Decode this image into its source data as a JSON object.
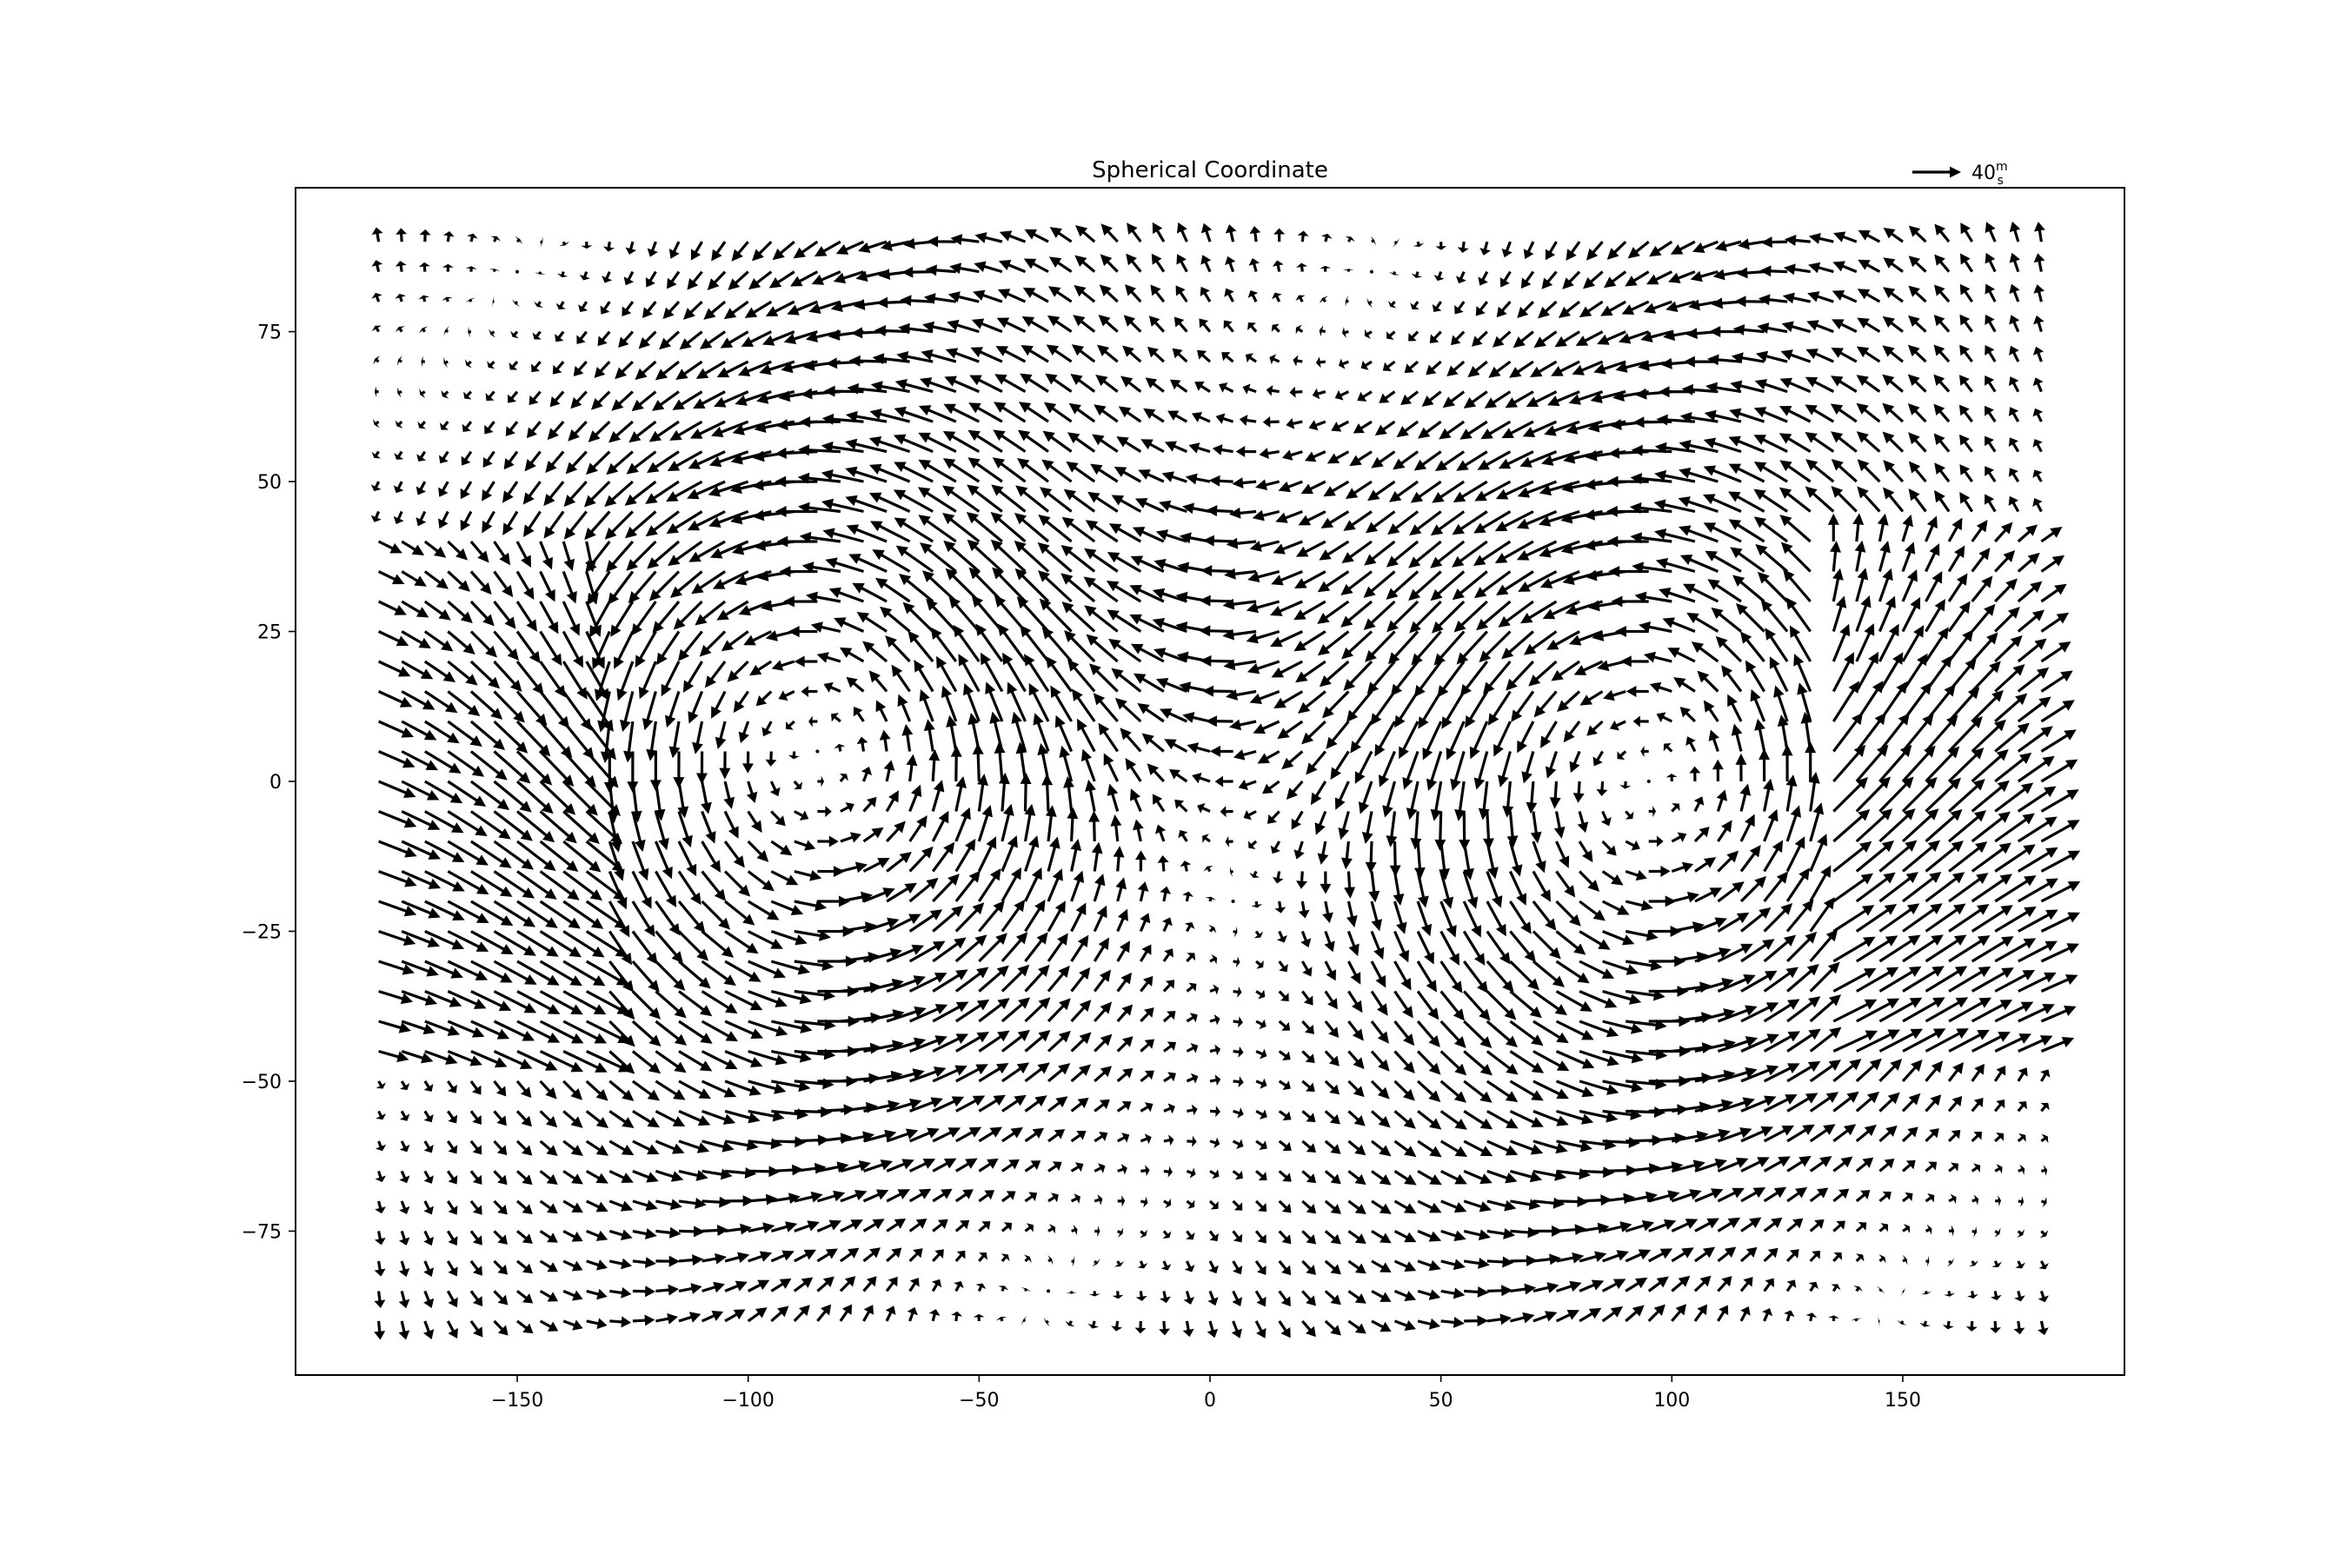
{
  "chart_data": {
    "type": "quiver",
    "title": "Spherical Coordinate",
    "xlabel": "",
    "ylabel": "",
    "xlim": [
      -198,
      198
    ],
    "ylim": [
      -99,
      99
    ],
    "x_ticks": [
      -150,
      -100,
      -50,
      0,
      50,
      100,
      150
    ],
    "x_tick_labels": [
      "−150",
      "−100",
      "−50",
      "0",
      "50",
      "100",
      "150"
    ],
    "y_ticks": [
      -75,
      -50,
      -25,
      0,
      25,
      50,
      75
    ],
    "y_tick_labels": [
      "−75",
      "−50",
      "−25",
      "0",
      "25",
      "50",
      "75"
    ],
    "grid": false,
    "color": "#000000",
    "quiverkey": {
      "value": 40,
      "label": "40",
      "unit_num": "m",
      "unit_den": "s",
      "position": "top-right"
    },
    "vector_field": {
      "description": "wind velocity vectors (u, v) in m/s on a regular longitude/latitude grid",
      "lon_range": [
        -180,
        180
      ],
      "lon_step": 5,
      "lat_range": [
        -90,
        90
      ],
      "lat_step": 5,
      "max_speed": 40,
      "features": [
        {
          "kind": "vortex",
          "center": [
            -85,
            5
          ],
          "rotation": "counter-clockwise"
        },
        {
          "kind": "vortex",
          "center": [
            95,
            0
          ],
          "rotation": "counter-clockwise"
        },
        {
          "kind": "eastward-jet",
          "lon_range": [
            -180,
            -135
          ]
        },
        {
          "kind": "eastward-jet",
          "lon_range": [
            135,
            180
          ]
        },
        {
          "kind": "westward-flow",
          "center": [
            0,
            20
          ]
        }
      ]
    }
  }
}
